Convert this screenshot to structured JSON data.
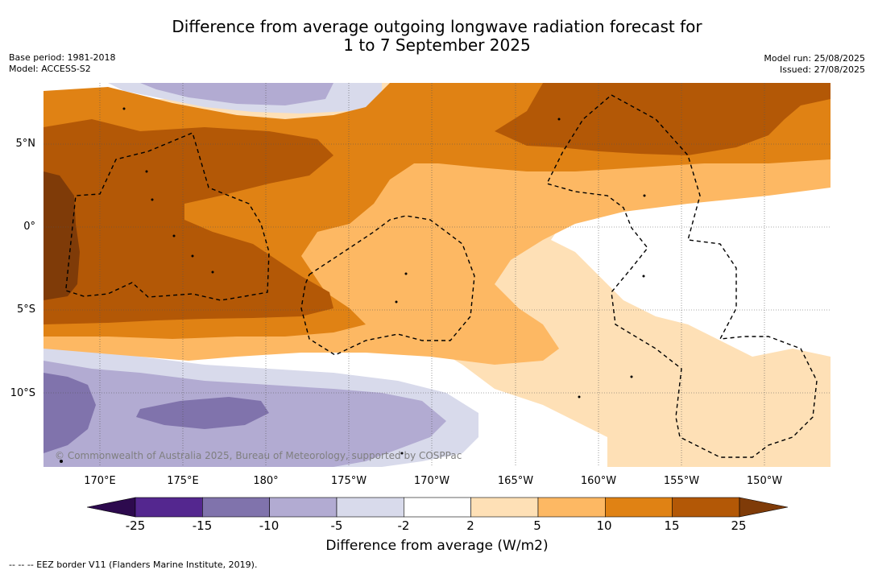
{
  "title_line1": "Difference from average outgoing longwave radiation forecast for",
  "title_line2": "1 to 7 September 2025",
  "meta_left": [
    "Base period: 1981-2018",
    "Model: ACCESS-S2"
  ],
  "meta_right": [
    "Model run: 25/08/2025",
    "Issued: 27/08/2025"
  ],
  "lat_labels": [
    "5°N",
    "0°",
    "5°S",
    "10°S"
  ],
  "lon_labels": [
    "170°E",
    "175°E",
    "180°",
    "175°W",
    "170°W",
    "165°W",
    "160°W",
    "155°W",
    "150°W"
  ],
  "copyright": "© Commonwealth of Australia 2025, Bureau of Meteorology, supported by COSPPac",
  "colorbar": {
    "ticks": [
      "-25",
      "-15",
      "-10",
      "-5",
      "-2",
      "2",
      "5",
      "10",
      "15",
      "25"
    ],
    "title": "Difference from average (W/m2)",
    "colors": {
      "under": "#2d0a4e",
      "bins": [
        "#54278f",
        "#8073ac",
        "#b2abd2",
        "#d8daeb",
        "#ffffff",
        "#fee0b6",
        "#fdb863",
        "#e08214",
        "#b35806"
      ],
      "over": "#7f3b08"
    }
  },
  "footnote": "--  --  -- EEZ border V11 (Flanders Marine Institute, 2019)."
}
